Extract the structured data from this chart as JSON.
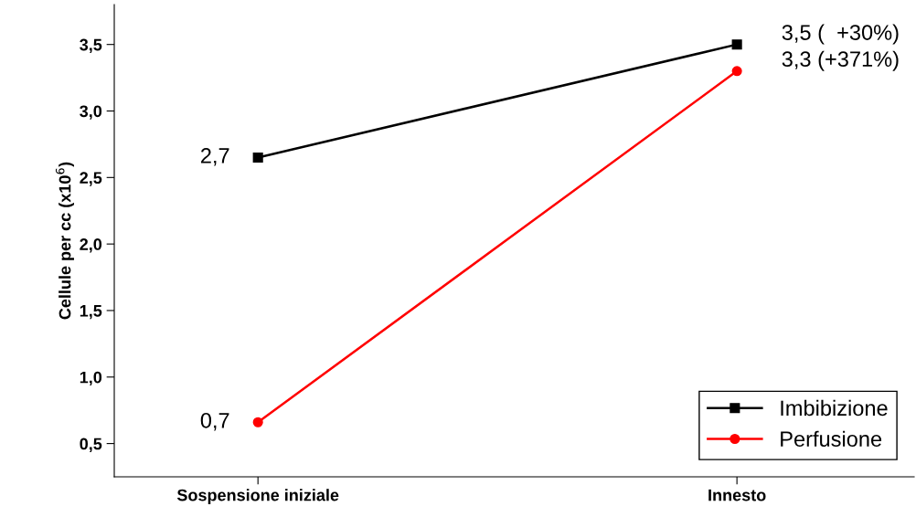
{
  "chart_data": {
    "type": "line",
    "ylabel": "Cellule per cc (x10$^{6}$)",
    "categories": [
      "Sospensione iniziale",
      "Innesto"
    ],
    "series": [
      {
        "name": "Imbibizione",
        "color": "#000000",
        "marker": "square",
        "values": [
          2.65,
          3.5
        ],
        "value_labels": [
          "2,7",
          "3,5 (  +30%)"
        ]
      },
      {
        "name": "Perfusione",
        "color": "#ff0000",
        "marker": "circle",
        "values": [
          0.66,
          3.3
        ],
        "value_labels": [
          "0,7",
          "3,3 (+371%)"
        ]
      }
    ],
    "ylim": [
      0.25,
      3.8
    ],
    "yticks": [
      {
        "value": 0.5,
        "label": "0,5"
      },
      {
        "value": 1.0,
        "label": "1,0"
      },
      {
        "value": 1.5,
        "label": "1,5"
      },
      {
        "value": 2.0,
        "label": "2,0"
      },
      {
        "value": 2.5,
        "label": "2,5"
      },
      {
        "value": 3.0,
        "label": "3,0"
      },
      {
        "value": 3.5,
        "label": "3,5"
      }
    ],
    "grid": false,
    "legend": "bottom right",
    "line_style": "solid"
  }
}
